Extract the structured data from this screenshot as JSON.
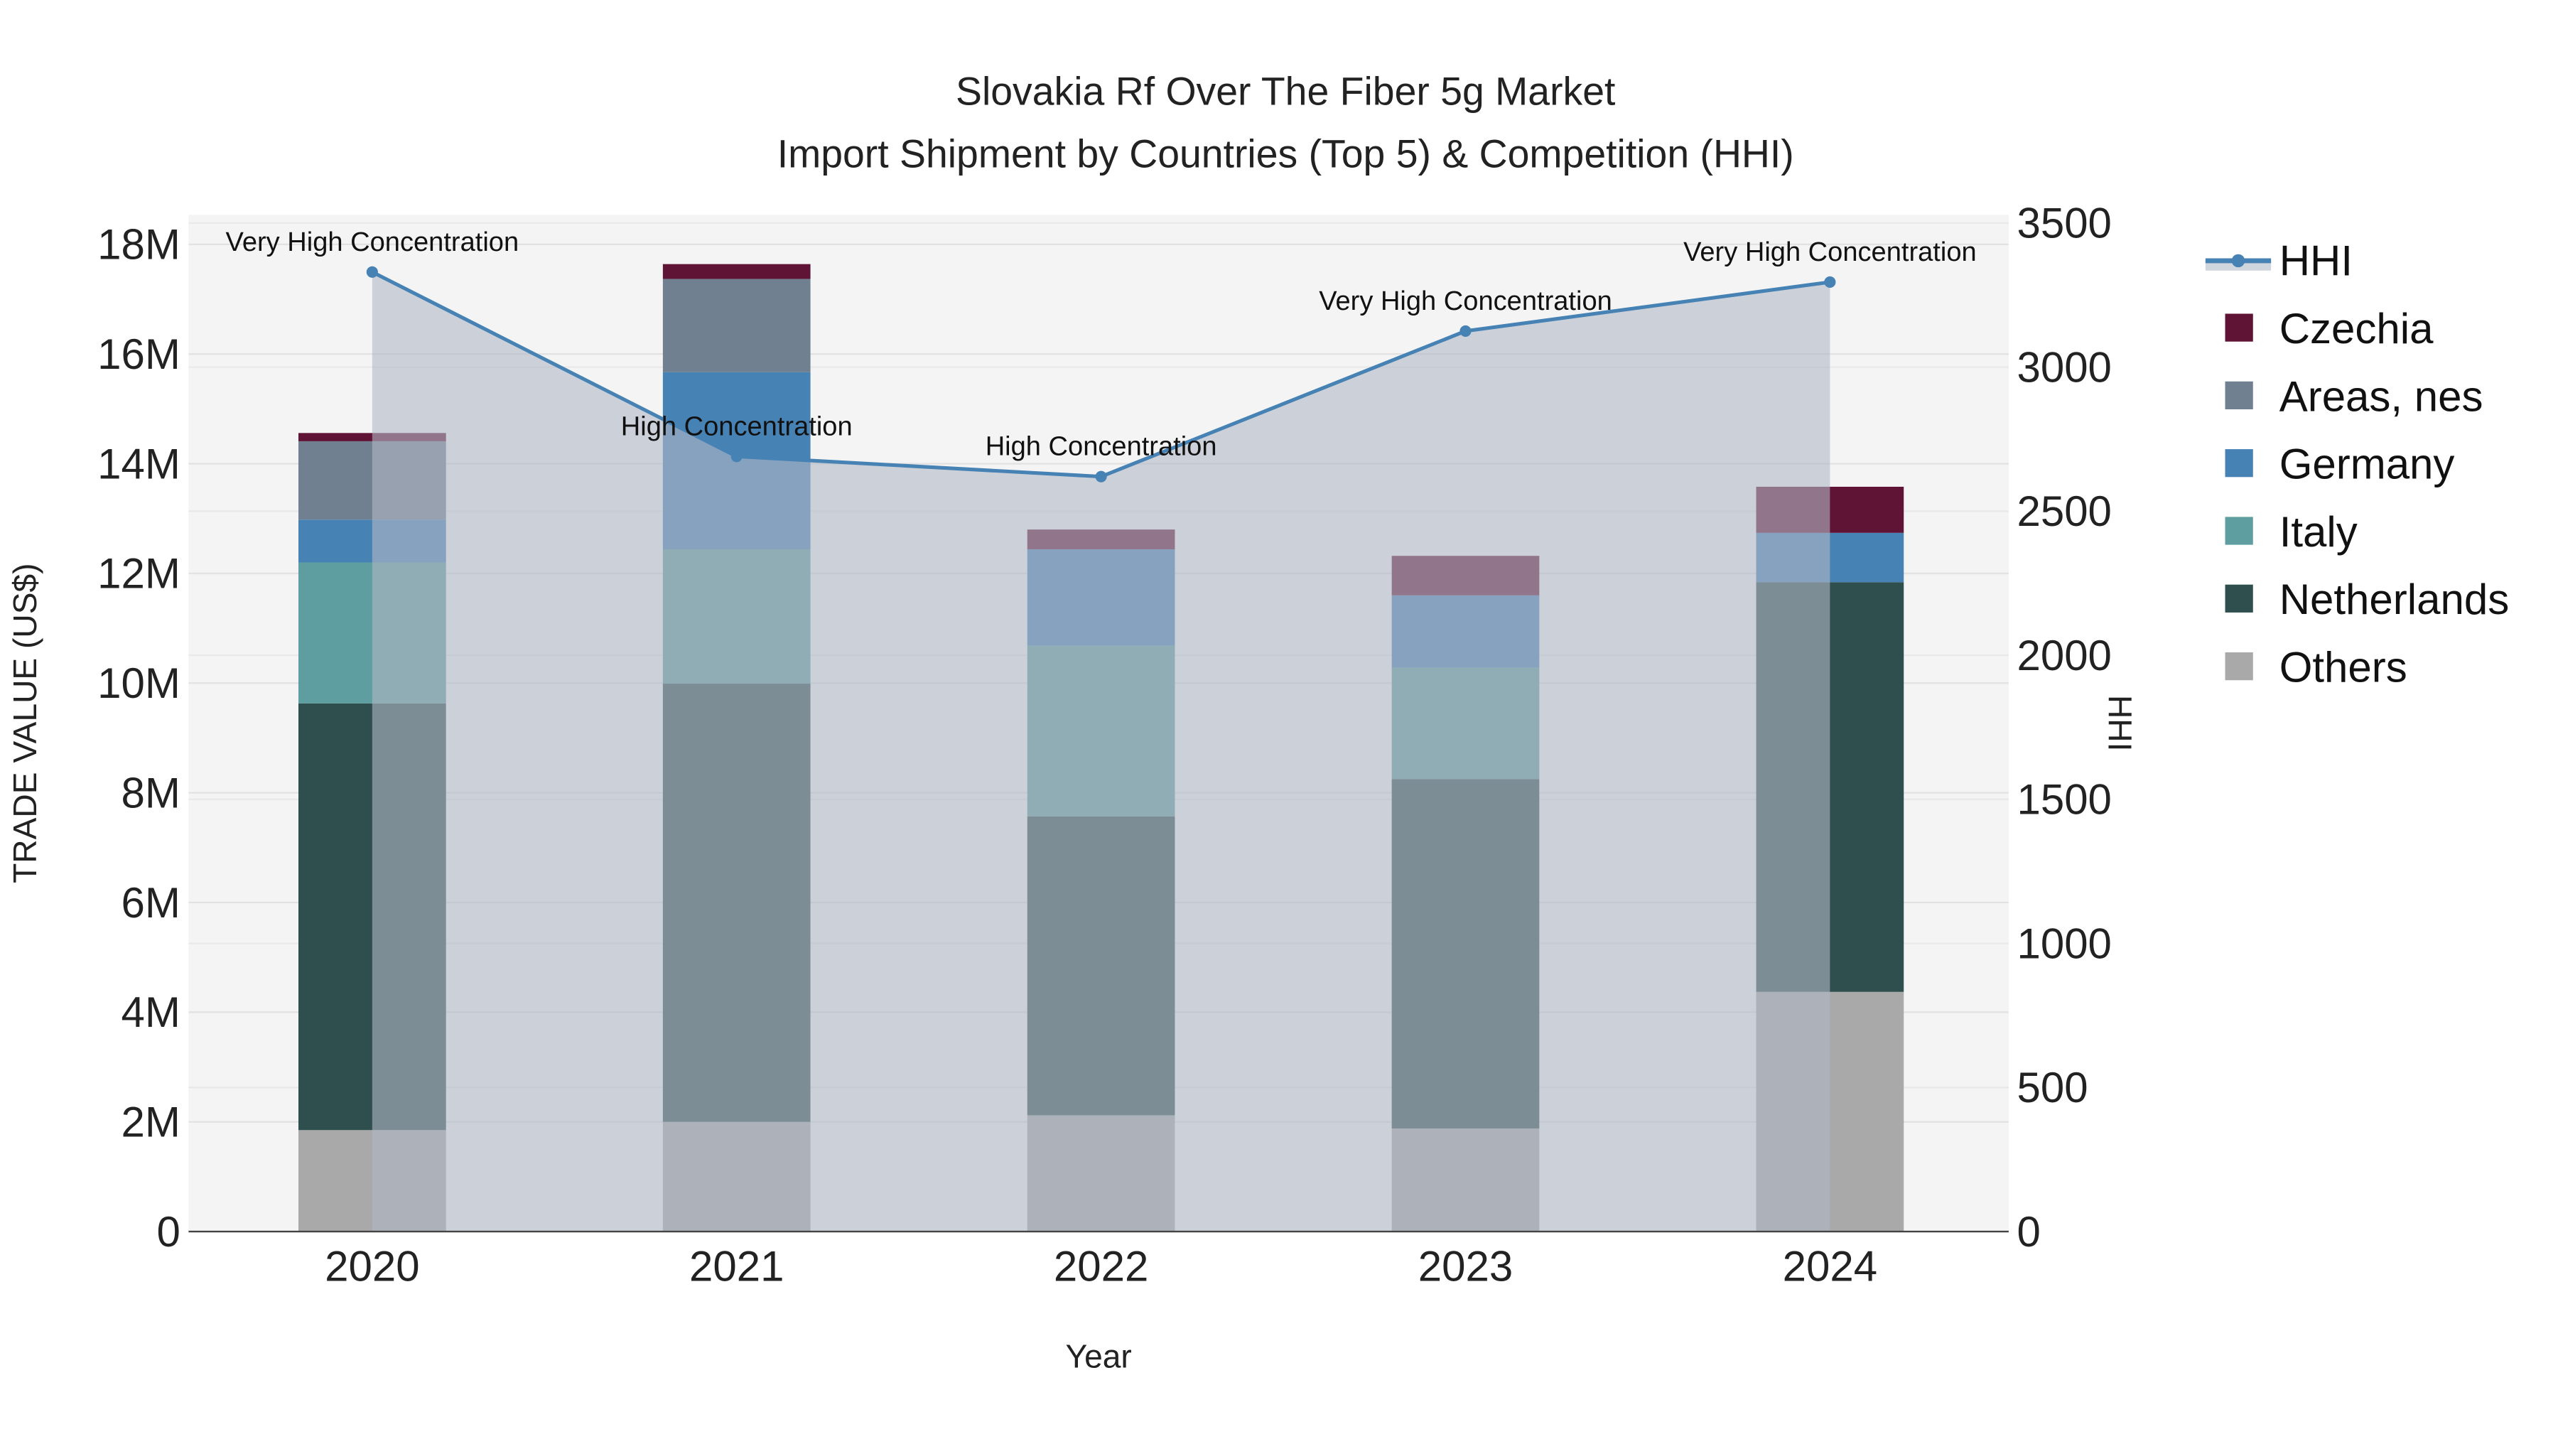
{
  "chart_data": {
    "type": "bar",
    "title": "Slovakia Rf Over The Fiber 5g Market",
    "subtitle": "Import Shipment by Countries (Top 5) & Competition (HHI)",
    "xlabel": "Year",
    "ylabel": "TRADE VALUE (US$)",
    "y2label": "HHI",
    "categories": [
      "2020",
      "2021",
      "2022",
      "2023",
      "2024"
    ],
    "ylim": [
      0,
      18500000
    ],
    "yticks": [
      0,
      2000000,
      4000000,
      6000000,
      8000000,
      10000000,
      12000000,
      14000000,
      16000000,
      18000000
    ],
    "ytick_labels": [
      "0",
      "2M",
      "4M",
      "6M",
      "8M",
      "10M",
      "12M",
      "14M",
      "16M",
      "18M"
    ],
    "y2lim": [
      0,
      3600
    ],
    "y2ticks": [
      0,
      500,
      1000,
      1500,
      2000,
      2500,
      3000,
      3500
    ],
    "y2tick_labels": [
      "0",
      "500",
      "1000",
      "1500",
      "2000",
      "2500",
      "3000",
      "3500"
    ],
    "grid": true,
    "legend_position": "right",
    "series": [
      {
        "name": "Others",
        "color": "#a9a9a9",
        "values": [
          1850000,
          2000000,
          2120000,
          1880000,
          4370000
        ]
      },
      {
        "name": "Netherlands",
        "color": "#2f4f4f",
        "values": [
          7780000,
          7990000,
          5450000,
          6370000,
          7470000
        ]
      },
      {
        "name": "Italy",
        "color": "#5f9ea0",
        "values": [
          2570000,
          2450000,
          3110000,
          2030000,
          0
        ]
      },
      {
        "name": "Germany",
        "color": "#4682b4",
        "values": [
          780000,
          3230000,
          1760000,
          1320000,
          900000
        ]
      },
      {
        "name": "Areas, nes",
        "color": "#708090",
        "values": [
          1430000,
          1700000,
          0,
          0,
          0
        ]
      },
      {
        "name": "Czechia",
        "color": "#5f1335",
        "values": [
          150000,
          270000,
          360000,
          720000,
          840000
        ]
      }
    ],
    "legend_order": [
      "HHI",
      "Czechia",
      "Areas, nes",
      "Germany",
      "Italy",
      "Netherlands",
      "Others"
    ],
    "hhi": {
      "name": "HHI",
      "color": "#4682b4",
      "values": [
        3330,
        2690,
        2620,
        3125,
        3295
      ],
      "annotations": [
        "Very High Concentration",
        "High Concentration",
        "High Concentration",
        "Very High Concentration",
        "Very High Concentration"
      ]
    }
  }
}
